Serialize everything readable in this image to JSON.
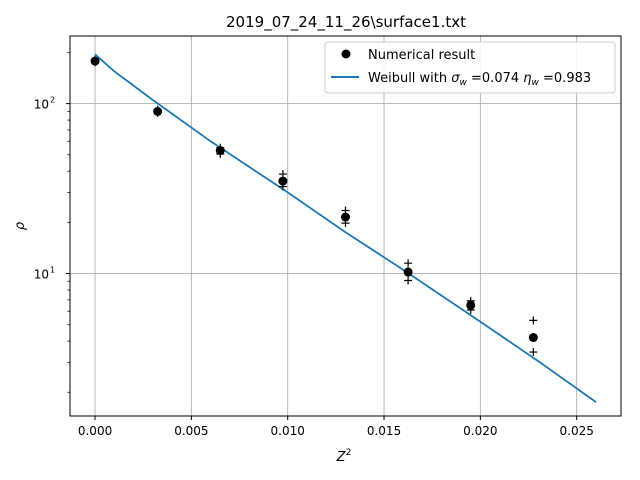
{
  "chart_data": {
    "type": "scatter",
    "title": "2019_07_24_11_26\\surface1.txt",
    "xlabel": "Z",
    "xlabel_sup": "2",
    "ylabel": "ρ",
    "xlim": [
      -0.0013,
      0.0273
    ],
    "ylim": [
      1.45,
      250
    ],
    "yscale": "log",
    "grid": true,
    "legend_placement": "top-right",
    "x_ticks": [
      {
        "v": 0.0,
        "label": "0.000"
      },
      {
        "v": 0.005,
        "label": "0.005"
      },
      {
        "v": 0.01,
        "label": "0.010"
      },
      {
        "v": 0.015,
        "label": "0.015"
      },
      {
        "v": 0.02,
        "label": "0.020"
      },
      {
        "v": 0.025,
        "label": "0.025"
      }
    ],
    "y_major_ticks": [
      {
        "v": 10,
        "base": "10",
        "exp": "1"
      },
      {
        "v": 100,
        "base": "10",
        "exp": "2"
      }
    ],
    "y_minor_ticks": [
      2,
      3,
      4,
      5,
      6,
      7,
      8,
      9,
      20,
      30,
      40,
      50,
      60,
      70,
      80,
      90,
      200
    ],
    "series": [
      {
        "name": "Numerical result",
        "kind": "points",
        "color": "#000000",
        "x": [
          0.0,
          0.00325,
          0.0065,
          0.00975,
          0.013,
          0.01625,
          0.0195,
          0.02275
        ],
        "y": [
          178,
          90,
          53,
          35,
          21.5,
          10.2,
          6.5,
          4.2
        ]
      },
      {
        "name": "Weibull with",
        "legend_parts": [
          "Weibull with ",
          "σ",
          "w",
          " =0.074 ",
          "η",
          "w",
          " =0.983"
        ],
        "kind": "line",
        "color": "#1f77b4",
        "x": [
          0.0,
          0.001,
          0.003,
          0.006,
          0.01,
          0.013,
          0.016,
          0.02,
          0.023,
          0.026
        ],
        "y": [
          195,
          155,
          105,
          60,
          30,
          17.5,
          10.5,
          5.2,
          3.05,
          1.75
        ]
      },
      {
        "name": "",
        "kind": "markers-plus",
        "color": "#000000",
        "x": [
          0.0,
          0.0,
          0.00325,
          0.00325,
          0.0065,
          0.0065,
          0.00975,
          0.00975,
          0.013,
          0.013,
          0.01625,
          0.01625,
          0.0195,
          0.0195,
          0.02275,
          0.02275
        ],
        "y": [
          181,
          175,
          92,
          88,
          55,
          50.5,
          38.5,
          32.5,
          23.5,
          19.8,
          11.5,
          9.1,
          6.9,
          6.1,
          5.3,
          3.45
        ]
      }
    ]
  }
}
